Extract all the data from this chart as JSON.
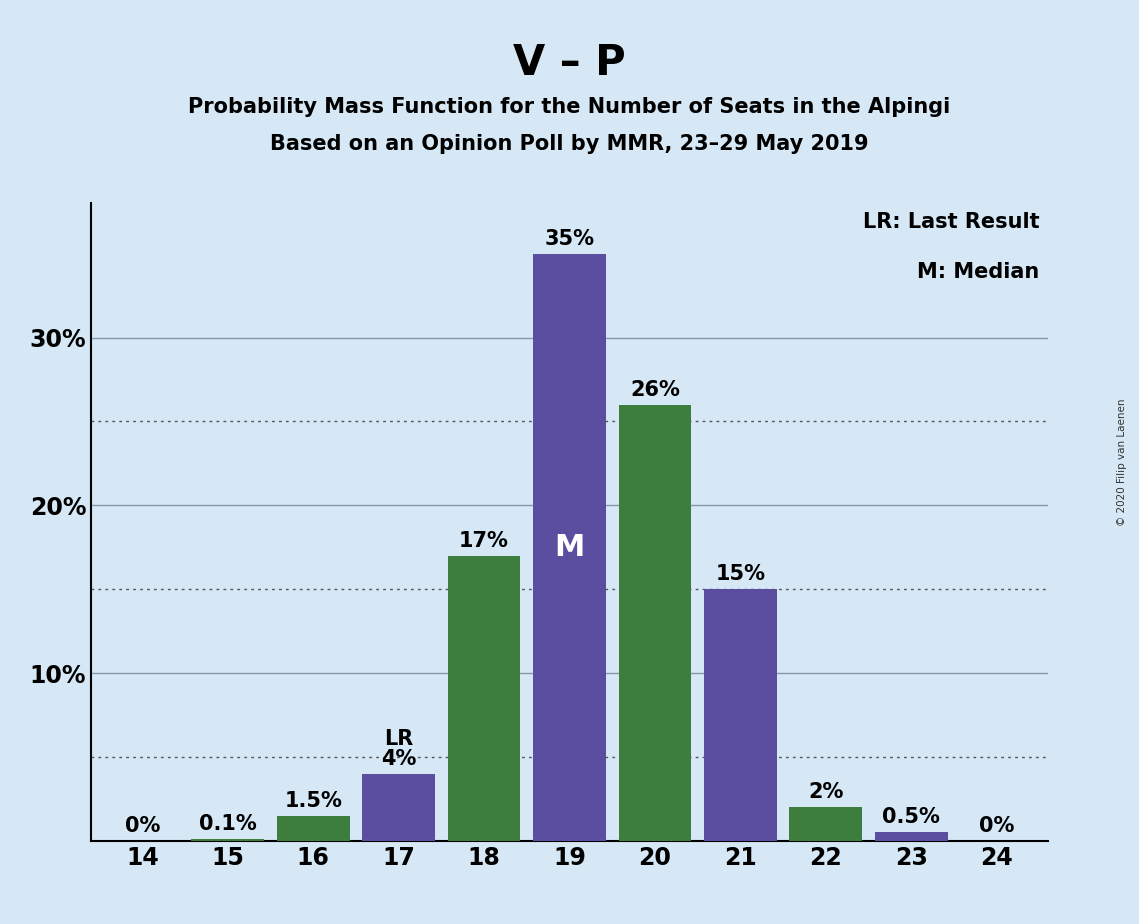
{
  "title": "V – P",
  "subtitle1": "Probability Mass Function for the Number of Seats in the Alpingi",
  "subtitle2": "Based on an Opinion Poll by MMR, 23–29 May 2019",
  "copyright": "© 2020 Filip van Laenen",
  "legend_lr": "LR: Last Result",
  "legend_m": "M: Median",
  "seats": [
    14,
    15,
    16,
    17,
    18,
    19,
    20,
    21,
    22,
    23,
    24
  ],
  "green_values": [
    0.0,
    0.1,
    1.5,
    0.0,
    17.0,
    0.0,
    26.0,
    0.0,
    2.0,
    0.5,
    0.0
  ],
  "purple_values": [
    0.0,
    0.0,
    0.0,
    4.0,
    0.0,
    35.0,
    0.0,
    15.0,
    0.0,
    0.5,
    0.0
  ],
  "green_labels": [
    "0%",
    "0.1%",
    "1.5%",
    "",
    "17%",
    "",
    "26%",
    "",
    "2%",
    "0.5%",
    "0%"
  ],
  "purple_labels": [
    "",
    "",
    "",
    "4%",
    "",
    "35%",
    "",
    "15%",
    "",
    "",
    ""
  ],
  "green_color": "#3d7d3d",
  "purple_color": "#5b4ea0",
  "background_color": "#d6e8f5",
  "bar_width": 0.85,
  "ylim": [
    0,
    38
  ],
  "gridlines_dotted": [
    5,
    15,
    25
  ],
  "gridlines_solid": [
    10,
    20,
    30
  ],
  "lr_seat": 17,
  "median_seat": 19,
  "title_fontsize": 30,
  "subtitle_fontsize": 15,
  "bar_label_fontsize": 15,
  "axis_label_fontsize": 17,
  "legend_fontsize": 15
}
